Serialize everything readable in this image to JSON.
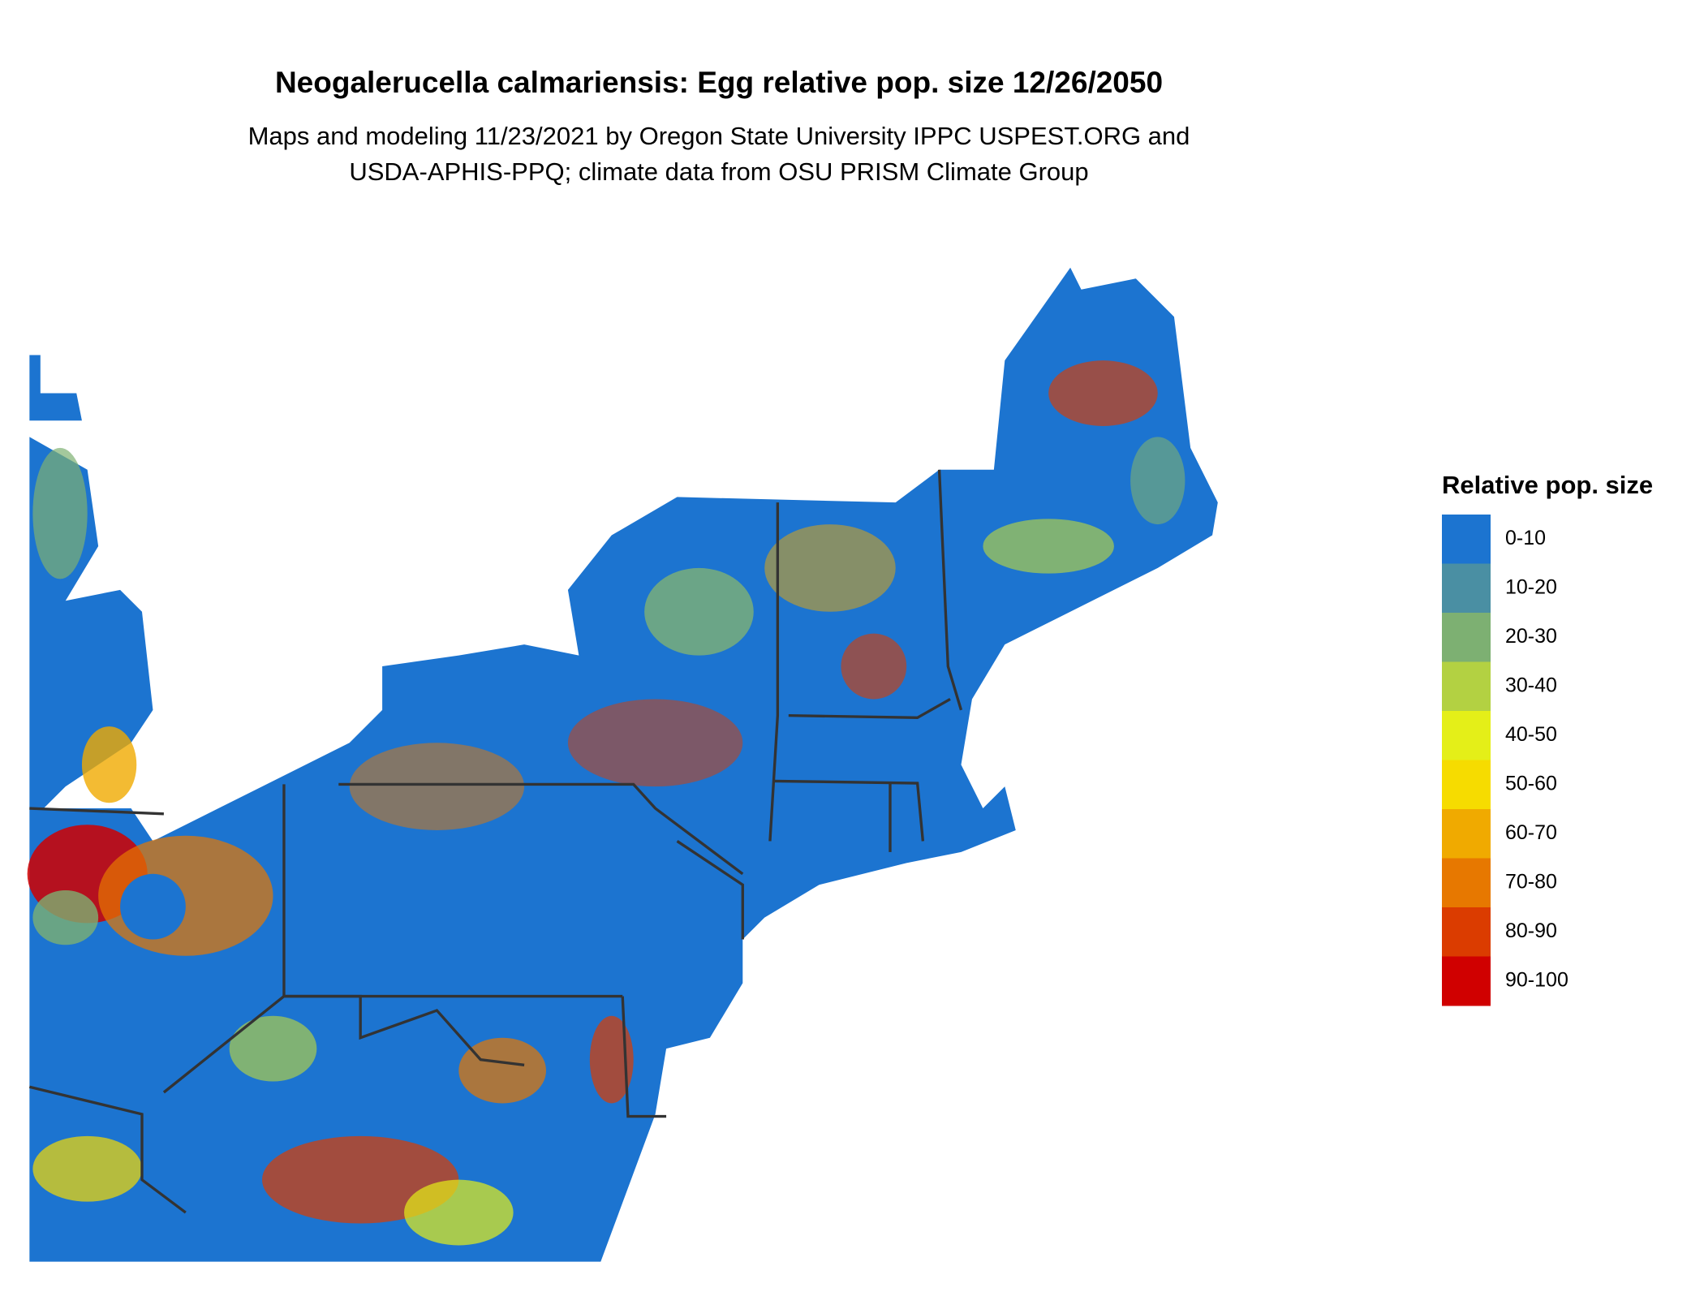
{
  "title": "Neogalerucella calmariensis: Egg relative pop. size 12/26/2050",
  "subtitle": [
    "Maps and modeling 11/23/2021 by Oregon State University IPPC USPEST.ORG and",
    "USDA-APHIS-PPQ; climate data from OSU PRISM Climate Group"
  ],
  "legend": {
    "title": "Relative pop. size",
    "items": [
      {
        "label": "0-10",
        "color": "#1c74d0"
      },
      {
        "label": "10-20",
        "color": "#4a8fa3"
      },
      {
        "label": "20-30",
        "color": "#7db072"
      },
      {
        "label": "30-40",
        "color": "#b3d142"
      },
      {
        "label": "40-50",
        "color": "#e4ef18"
      },
      {
        "label": "50-60",
        "color": "#f6dc00"
      },
      {
        "label": "60-70",
        "color": "#f0aa00"
      },
      {
        "label": "70-80",
        "color": "#e77800"
      },
      {
        "label": "80-90",
        "color": "#db3c00"
      },
      {
        "label": "90-100",
        "color": "#d00000"
      }
    ]
  }
}
